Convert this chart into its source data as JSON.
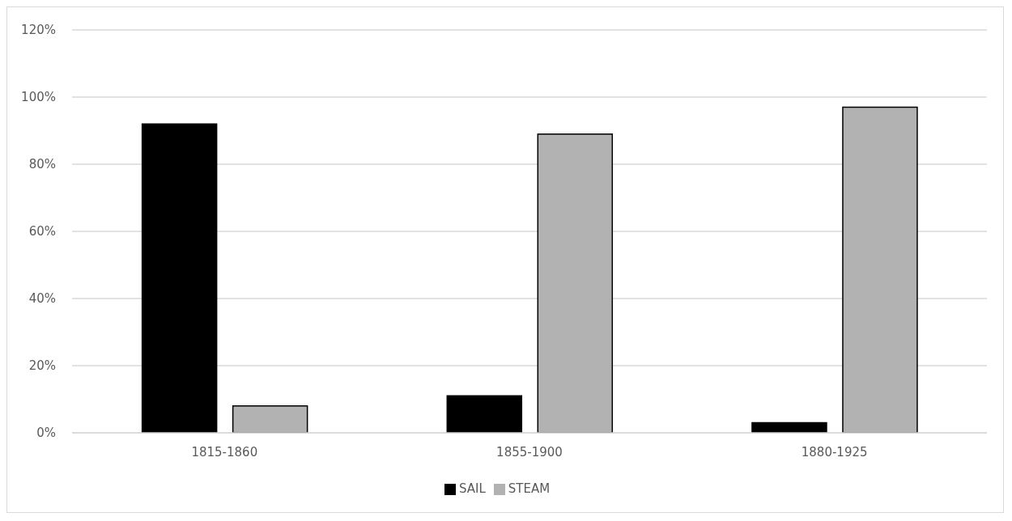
{
  "chart_data": {
    "type": "bar",
    "categories": [
      "1815-1860",
      "1855-1900",
      "1880-1925"
    ],
    "series": [
      {
        "name": "SAIL",
        "color": "#000000",
        "values": [
          92,
          11,
          3
        ]
      },
      {
        "name": "STEAM",
        "color": "#b2b2b2",
        "values": [
          8,
          89,
          97
        ]
      }
    ],
    "ylim": [
      0,
      120
    ],
    "yticks": [
      {
        "value": 0,
        "label": "0%"
      },
      {
        "value": 20,
        "label": "20%"
      },
      {
        "value": 40,
        "label": "40%"
      },
      {
        "value": 60,
        "label": "60%"
      },
      {
        "value": 80,
        "label": "80%"
      },
      {
        "value": 100,
        "label": "100%"
      },
      {
        "value": 120,
        "label": "120%"
      }
    ],
    "grid": "y",
    "legend": "bottom"
  }
}
